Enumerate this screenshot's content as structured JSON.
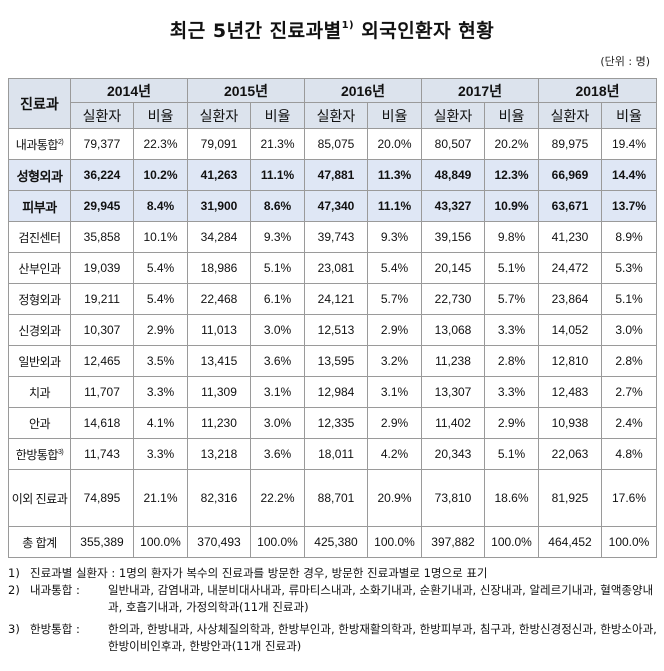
{
  "title": {
    "main_before": "최근 5년간 진료과별",
    "sup": "1)",
    "main_after": "외국인환자 현황"
  },
  "unit": "(단위 : 명)",
  "table": {
    "dept_header": "진료과",
    "years": [
      "2014년",
      "2015년",
      "2016년",
      "2017년",
      "2018년"
    ],
    "sub_headers": {
      "patients": "실환자",
      "ratio": "비율"
    },
    "rows": [
      {
        "dept": "내과통합",
        "sup": "2)",
        "highlight": false,
        "values": [
          "79,377",
          "22.3%",
          "79,091",
          "21.3%",
          "85,075",
          "20.0%",
          "80,507",
          "20.2%",
          "89,975",
          "19.4%"
        ]
      },
      {
        "dept": "성형외과",
        "sup": "",
        "highlight": true,
        "values": [
          "36,224",
          "10.2%",
          "41,263",
          "11.1%",
          "47,881",
          "11.3%",
          "48,849",
          "12.3%",
          "66,969",
          "14.4%"
        ]
      },
      {
        "dept": "피부과",
        "sup": "",
        "highlight": true,
        "values": [
          "29,945",
          "8.4%",
          "31,900",
          "8.6%",
          "47,340",
          "11.1%",
          "43,327",
          "10.9%",
          "63,671",
          "13.7%"
        ]
      },
      {
        "dept": "검진센터",
        "sup": "",
        "highlight": false,
        "values": [
          "35,858",
          "10.1%",
          "34,284",
          "9.3%",
          "39,743",
          "9.3%",
          "39,156",
          "9.8%",
          "41,230",
          "8.9%"
        ]
      },
      {
        "dept": "산부인과",
        "sup": "",
        "highlight": false,
        "values": [
          "19,039",
          "5.4%",
          "18,986",
          "5.1%",
          "23,081",
          "5.4%",
          "20,145",
          "5.1%",
          "24,472",
          "5.3%"
        ]
      },
      {
        "dept": "정형외과",
        "sup": "",
        "highlight": false,
        "values": [
          "19,211",
          "5.4%",
          "22,468",
          "6.1%",
          "24,121",
          "5.7%",
          "22,730",
          "5.7%",
          "23,864",
          "5.1%"
        ]
      },
      {
        "dept": "신경외과",
        "sup": "",
        "highlight": false,
        "values": [
          "10,307",
          "2.9%",
          "11,013",
          "3.0%",
          "12,513",
          "2.9%",
          "13,068",
          "3.3%",
          "14,052",
          "3.0%"
        ]
      },
      {
        "dept": "일반외과",
        "sup": "",
        "highlight": false,
        "values": [
          "12,465",
          "3.5%",
          "13,415",
          "3.6%",
          "13,595",
          "3.2%",
          "11,238",
          "2.8%",
          "12,810",
          "2.8%"
        ]
      },
      {
        "dept": "치과",
        "sup": "",
        "highlight": false,
        "values": [
          "11,707",
          "3.3%",
          "11,309",
          "3.1%",
          "12,984",
          "3.1%",
          "13,307",
          "3.3%",
          "12,483",
          "2.7%"
        ]
      },
      {
        "dept": "안과",
        "sup": "",
        "highlight": false,
        "values": [
          "14,618",
          "4.1%",
          "11,230",
          "3.0%",
          "12,335",
          "2.9%",
          "11,402",
          "2.9%",
          "10,938",
          "2.4%"
        ]
      },
      {
        "dept": "한방통합",
        "sup": "3)",
        "highlight": false,
        "values": [
          "11,743",
          "3.3%",
          "13,218",
          "3.6%",
          "18,011",
          "4.2%",
          "20,343",
          "5.1%",
          "22,063",
          "4.8%"
        ]
      },
      {
        "dept": "이외 진료과",
        "sup": "",
        "highlight": false,
        "tall": true,
        "values": [
          "74,895",
          "21.1%",
          "82,316",
          "22.2%",
          "88,701",
          "20.9%",
          "73,810",
          "18.6%",
          "81,925",
          "17.6%"
        ]
      }
    ],
    "total": {
      "dept": "총 합계",
      "values": [
        "355,389",
        "100.0%",
        "370,493",
        "100.0%",
        "425,380",
        "100.0%",
        "397,882",
        "100.0%",
        "464,452",
        "100.0%"
      ]
    }
  },
  "notes": [
    {
      "num": "1)",
      "key": "",
      "text": "진료과별 실환자 : 1명의 환자가 복수의 진료과를 방문한 경우, 방문한 진료과별로 1명으로 표기"
    },
    {
      "num": "2)",
      "key": "내과통합 :",
      "text": "일반내과, 감염내과, 내분비대사내과, 류마티스내과, 소화기내과, 순환기내과, 신장내과, 알레르기내과, 혈액종양내과, 호흡기내과, 가정의학과(11개 진료과)"
    },
    {
      "num": "3)",
      "key": "한방통합 :",
      "text": "한의과, 한방내과, 사상체질의학과, 한방부인과, 한방재활의학과, 한방피부과, 침구과, 한방신경정신과, 한방소아과, 한방이비인후과, 한방안과(11개 진료과)"
    }
  ]
}
